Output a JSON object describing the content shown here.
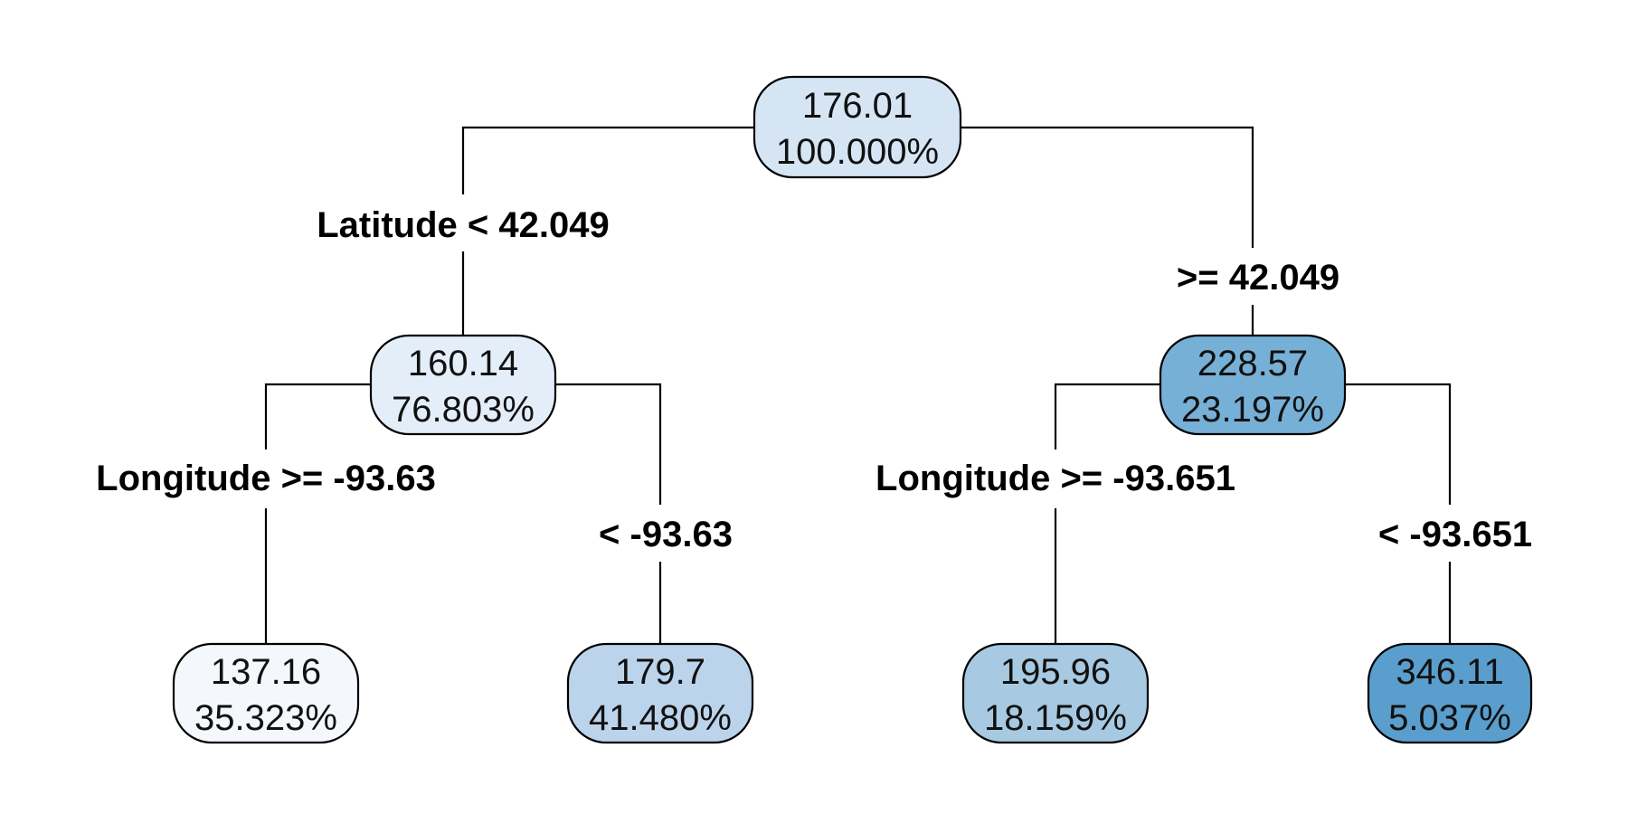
{
  "tree": {
    "nodes": [
      {
        "id": "root",
        "value": "176.01",
        "percent": "100.000%",
        "fill": "#d6e5f4"
      },
      {
        "id": "left",
        "value": "160.14",
        "percent": "76.803%",
        "fill": "#e4eef9"
      },
      {
        "id": "right",
        "value": "228.57",
        "percent": "23.197%",
        "fill": "#77b0d6"
      },
      {
        "id": "left-left",
        "value": "137.16",
        "percent": "35.323%",
        "fill": "#f4f8fd"
      },
      {
        "id": "left-right",
        "value": "179.7",
        "percent": "41.480%",
        "fill": "#bcd3ec"
      },
      {
        "id": "right-left",
        "value": "195.96",
        "percent": "18.159%",
        "fill": "#a7c9e2"
      },
      {
        "id": "right-right",
        "value": "346.11",
        "percent": "5.037%",
        "fill": "#5a9ecd"
      }
    ],
    "splits": [
      {
        "id": "root-yes",
        "label": "Latitude < 42.049"
      },
      {
        "id": "root-no",
        "label": ">= 42.049"
      },
      {
        "id": "left-yes",
        "label": "Longitude >= -93.63"
      },
      {
        "id": "left-no",
        "label": "< -93.63"
      },
      {
        "id": "right-yes",
        "label": "Longitude >= -93.651"
      },
      {
        "id": "right-no",
        "label": "< -93.651"
      }
    ]
  }
}
